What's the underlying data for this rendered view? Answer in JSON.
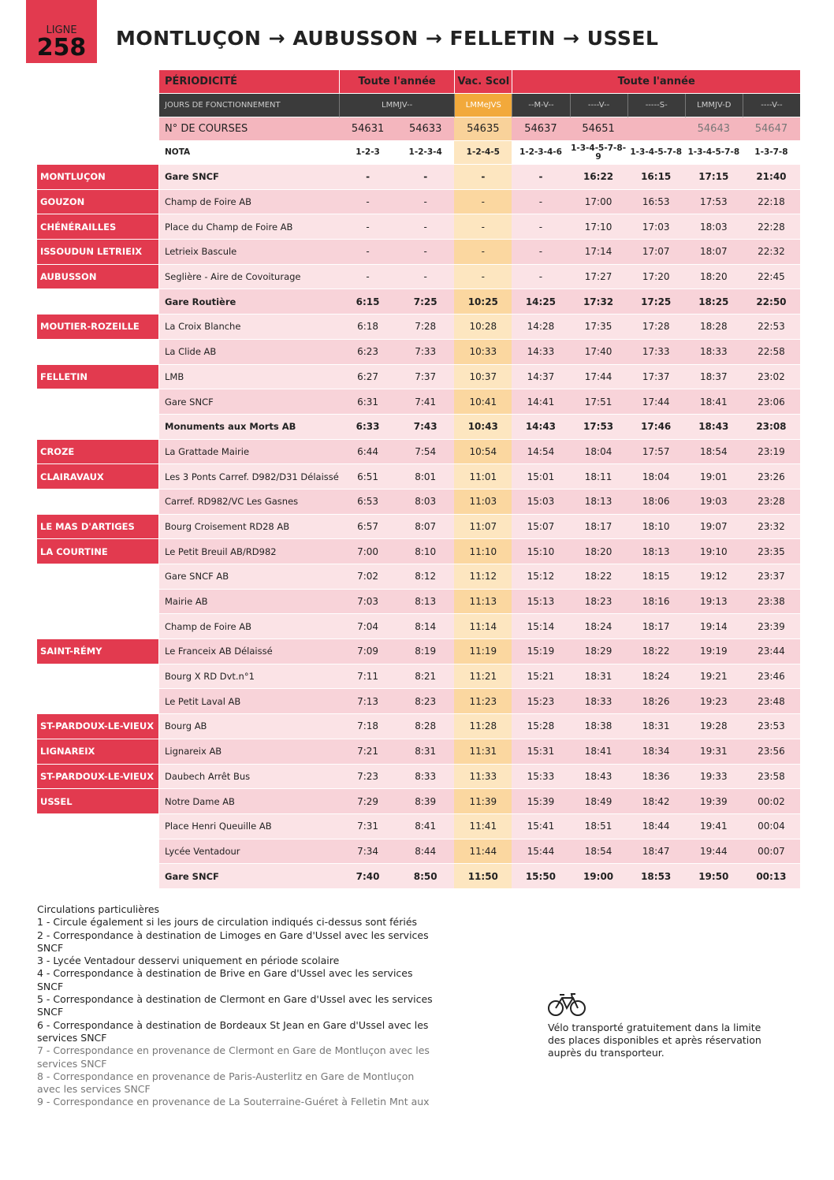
{
  "header": {
    "line_label": "LIGNE",
    "line_number": "258",
    "title": "MONTLUÇON → AUBUSSON → FELLETIN → USSEL"
  },
  "table": {
    "periodicity": {
      "label": "PÉRIODICITÉ",
      "groups": [
        "Toute l'année",
        "Vac. Scol",
        "Toute l'année"
      ]
    },
    "days": {
      "label": "JOURS DE FONCTIONNEMENT",
      "groups": [
        "LMMJV--",
        "LMMeJVS",
        "--M-V--",
        "----V--",
        "-----S-",
        "LMMJV-D",
        "----V--"
      ]
    },
    "courses": {
      "label": "N° DE COURSES",
      "values": [
        "54631",
        "54633",
        "54635",
        "54637",
        "54651",
        null,
        "54643",
        "54647"
      ]
    },
    "nota": {
      "label": "NOTA",
      "values": [
        "1-2-3",
        "1-2-3-4",
        "1-2-4-5",
        "1-2-3-4-6",
        "1-3-4-5-7-8-9",
        "1-3-4-5-7-8",
        "1-3-4-5-7-8",
        "1-3-7-8"
      ]
    },
    "rows": [
      {
        "commune": "MONTLUÇON",
        "stop": "Gare SNCF",
        "bold": true,
        "times": [
          "-",
          "-",
          "-",
          "-",
          "16:22",
          "16:15",
          "17:15",
          "21:40"
        ]
      },
      {
        "commune": "GOUZON",
        "stop": "Champ de Foire AB",
        "bold": false,
        "times": [
          "-",
          "-",
          "-",
          "-",
          "17:00",
          "16:53",
          "17:53",
          "22:18"
        ]
      },
      {
        "commune": "CHÉNÉRAILLES",
        "stop": "Place du Champ de Foire AB",
        "bold": false,
        "times": [
          "-",
          "-",
          "-",
          "-",
          "17:10",
          "17:03",
          "18:03",
          "22:28"
        ]
      },
      {
        "commune": "ISSOUDUN LETRIEIX",
        "stop": "Letrieix Bascule",
        "bold": false,
        "times": [
          "-",
          "-",
          "-",
          "-",
          "17:14",
          "17:07",
          "18:07",
          "22:32"
        ]
      },
      {
        "commune": "AUBUSSON",
        "stop": "Seglière - Aire de Covoiturage",
        "bold": false,
        "times": [
          "-",
          "-",
          "-",
          "-",
          "17:27",
          "17:20",
          "18:20",
          "22:45"
        ]
      },
      {
        "commune": null,
        "stop": "Gare Routière",
        "bold": true,
        "times": [
          "6:15",
          "7:25",
          "10:25",
          "14:25",
          "17:32",
          "17:25",
          "18:25",
          "22:50"
        ]
      },
      {
        "commune": "MOUTIER-ROZEILLE",
        "stop": "La Croix Blanche",
        "bold": false,
        "times": [
          "6:18",
          "7:28",
          "10:28",
          "14:28",
          "17:35",
          "17:28",
          "18:28",
          "22:53"
        ]
      },
      {
        "commune": null,
        "stop": "La Clide AB",
        "bold": false,
        "times": [
          "6:23",
          "7:33",
          "10:33",
          "14:33",
          "17:40",
          "17:33",
          "18:33",
          "22:58"
        ]
      },
      {
        "commune": "FELLETIN",
        "stop": "LMB",
        "bold": false,
        "times": [
          "6:27",
          "7:37",
          "10:37",
          "14:37",
          "17:44",
          "17:37",
          "18:37",
          "23:02"
        ]
      },
      {
        "commune": null,
        "stop": "Gare SNCF",
        "bold": false,
        "times": [
          "6:31",
          "7:41",
          "10:41",
          "14:41",
          "17:51",
          "17:44",
          "18:41",
          "23:06"
        ]
      },
      {
        "commune": null,
        "stop": "Monuments aux Morts AB",
        "bold": true,
        "times": [
          "6:33",
          "7:43",
          "10:43",
          "14:43",
          "17:53",
          "17:46",
          "18:43",
          "23:08"
        ]
      },
      {
        "commune": "CROZE",
        "stop": "La Grattade Mairie",
        "bold": false,
        "times": [
          "6:44",
          "7:54",
          "10:54",
          "14:54",
          "18:04",
          "17:57",
          "18:54",
          "23:19"
        ]
      },
      {
        "commune": "CLAIRAVAUX",
        "stop": "Les 3 Ponts Carref. D982/D31 Délaissé",
        "bold": false,
        "times": [
          "6:51",
          "8:01",
          "11:01",
          "15:01",
          "18:11",
          "18:04",
          "19:01",
          "23:26"
        ]
      },
      {
        "commune": null,
        "stop": "Carref. RD982/VC Les Gasnes",
        "bold": false,
        "times": [
          "6:53",
          "8:03",
          "11:03",
          "15:03",
          "18:13",
          "18:06",
          "19:03",
          "23:28"
        ]
      },
      {
        "commune": "LE MAS D'ARTIGES",
        "stop": "Bourg Croisement RD28 AB",
        "bold": false,
        "times": [
          "6:57",
          "8:07",
          "11:07",
          "15:07",
          "18:17",
          "18:10",
          "19:07",
          "23:32"
        ]
      },
      {
        "commune": "LA COURTINE",
        "stop": "Le Petit Breuil AB/RD982",
        "bold": false,
        "times": [
          "7:00",
          "8:10",
          "11:10",
          "15:10",
          "18:20",
          "18:13",
          "19:10",
          "23:35"
        ]
      },
      {
        "commune": null,
        "stop": "Gare SNCF AB",
        "bold": false,
        "times": [
          "7:02",
          "8:12",
          "11:12",
          "15:12",
          "18:22",
          "18:15",
          "19:12",
          "23:37"
        ]
      },
      {
        "commune": null,
        "stop": "Mairie AB",
        "bold": false,
        "times": [
          "7:03",
          "8:13",
          "11:13",
          "15:13",
          "18:23",
          "18:16",
          "19:13",
          "23:38"
        ]
      },
      {
        "commune": null,
        "stop": "Champ de Foire AB",
        "bold": false,
        "times": [
          "7:04",
          "8:14",
          "11:14",
          "15:14",
          "18:24",
          "18:17",
          "19:14",
          "23:39"
        ]
      },
      {
        "commune": "SAINT-RÉMY",
        "stop": "Le Franceix AB Délaissé",
        "bold": false,
        "times": [
          "7:09",
          "8:19",
          "11:19",
          "15:19",
          "18:29",
          "18:22",
          "19:19",
          "23:44"
        ]
      },
      {
        "commune": null,
        "stop": "Bourg X RD Dvt.n°1",
        "bold": false,
        "times": [
          "7:11",
          "8:21",
          "11:21",
          "15:21",
          "18:31",
          "18:24",
          "19:21",
          "23:46"
        ]
      },
      {
        "commune": null,
        "stop": "Le Petit Laval AB",
        "bold": false,
        "times": [
          "7:13",
          "8:23",
          "11:23",
          "15:23",
          "18:33",
          "18:26",
          "19:23",
          "23:48"
        ]
      },
      {
        "commune": "ST-PARDOUX-LE-VIEUX",
        "stop": "Bourg AB",
        "bold": false,
        "times": [
          "7:18",
          "8:28",
          "11:28",
          "15:28",
          "18:38",
          "18:31",
          "19:28",
          "23:53"
        ]
      },
      {
        "commune": "LIGNAREIX",
        "stop": "Lignareix AB",
        "bold": false,
        "times": [
          "7:21",
          "8:31",
          "11:31",
          "15:31",
          "18:41",
          "18:34",
          "19:31",
          "23:56"
        ]
      },
      {
        "commune": "ST-PARDOUX-LE-VIEUX",
        "stop": "Daubech Arrêt Bus",
        "bold": false,
        "times": [
          "7:23",
          "8:33",
          "11:33",
          "15:33",
          "18:43",
          "18:36",
          "19:33",
          "23:58"
        ]
      },
      {
        "commune": "USSEL",
        "stop": "Notre Dame AB",
        "bold": false,
        "times": [
          "7:29",
          "8:39",
          "11:39",
          "15:39",
          "18:49",
          "18:42",
          "19:39",
          "00:02"
        ]
      },
      {
        "commune": null,
        "stop": "Place Henri Queuille AB",
        "bold": false,
        "times": [
          "7:31",
          "8:41",
          "11:41",
          "15:41",
          "18:51",
          "18:44",
          "19:41",
          "00:04"
        ]
      },
      {
        "commune": null,
        "stop": "Lycée Ventadour",
        "bold": false,
        "times": [
          "7:34",
          "8:44",
          "11:44",
          "15:44",
          "18:54",
          "18:47",
          "19:44",
          "00:07"
        ]
      },
      {
        "commune": null,
        "stop": "Gare SNCF",
        "bold": true,
        "times": [
          "7:40",
          "8:50",
          "11:50",
          "15:50",
          "19:00",
          "18:53",
          "19:50",
          "00:13"
        ]
      }
    ]
  },
  "notes": {
    "title": "Circulations particulières",
    "items": [
      "1 - Circule également si les jours de circulation indiqués ci-dessus sont fériés",
      "2 - Correspondance à destination de Limoges en Gare d'Ussel avec les services SNCF",
      "3 - Lycée Ventadour desservi uniquement en période scolaire",
      "4 - Correspondance à destination de Brive en Gare d'Ussel avec les services SNCF",
      "5 - Correspondance à destination de Clermont en Gare d'Ussel avec les services SNCF",
      "6 - Correspondance à destination de Bordeaux St Jean en Gare d'Ussel avec les services SNCF",
      "7 - Correspondance en provenance de Clermont en Gare de Montluçon avec les services SNCF",
      "8 - Correspondance en provenance de Paris-Austerlitz en Gare de Montluçon avec les services SNCF",
      "9 - Correspondance en provenance de La Souterraine-Guéret à Felletin Mnt aux"
    ]
  },
  "bike": {
    "text": "Vélo transporté gratuitement dans la limite des places disponibles et après réservation auprès du transporteur."
  }
}
